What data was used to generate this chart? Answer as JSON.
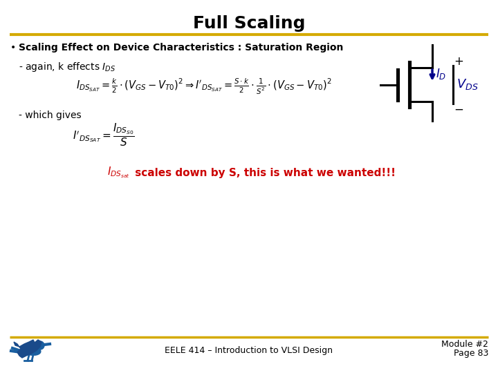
{
  "title": "Full Scaling",
  "title_fontsize": 18,
  "title_color": "#000000",
  "gold_line_color": "#D4AA00",
  "bullet_text": "Scaling Effect on Device Characteristics : Saturation Region",
  "eq1_latex": "$I_{DS_{SAT}} = \\frac{k}{2} \\cdot (V_{GS} - V_{T0})^2 \\Rightarrow I'_{DS_{SAT}} = \\frac{S \\cdot k}{2} \\cdot \\frac{1}{S^2} \\cdot (V_{GS} - V_{T0})^2$",
  "eq2_latex": "$I'_{DS_{SAT}} = \\dfrac{I_{DS_{S0}}}{S}$",
  "conclusion_latex": "$I_{DS_{sat}}$  scales down by S, this is what we wanted!!!",
  "conclusion_color": "#CC0000",
  "footer_text": "EELE 414 – Introduction to VLSI Design",
  "module_text": "Module #2",
  "page_text": "Page 83",
  "background_color": "#FFFFFF",
  "transistor_color": "#00008B"
}
